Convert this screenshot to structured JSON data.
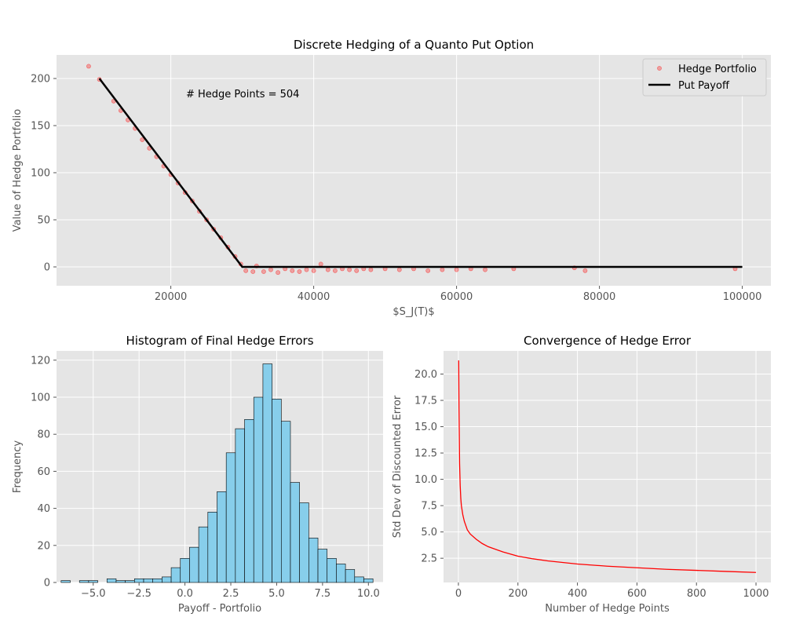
{
  "chart_data": [
    {
      "type": "scatter",
      "title": "Discrete Hedging of a Quanto Put Option",
      "xlabel": "$S_J(T)$",
      "ylabel": "Value of Hedge Portfolio",
      "xlim": [
        4000,
        104000
      ],
      "ylim": [
        -20,
        225
      ],
      "xticks": [
        20000,
        40000,
        60000,
        80000,
        100000
      ],
      "xtick_labels": [
        "20000",
        "40000",
        "60000",
        "80000",
        "100000"
      ],
      "yticks": [
        0,
        50,
        100,
        150,
        200
      ],
      "ytick_labels": [
        "0",
        "50",
        "100",
        "150",
        "200"
      ],
      "grid": true,
      "legend": "top-right",
      "annotation": "# Hedge Points = 504",
      "series": [
        {
          "name": "Hedge Portfolio",
          "kind": "scatter",
          "color": "#ff0000",
          "points": [
            [
              8500,
              213
            ],
            [
              10000,
              199
            ],
            [
              12000,
              176
            ],
            [
              13000,
              166
            ],
            [
              14000,
              156
            ],
            [
              15000,
              147
            ],
            [
              16000,
              135
            ],
            [
              17000,
              126
            ],
            [
              18000,
              117
            ],
            [
              19000,
              107
            ],
            [
              20000,
              98
            ],
            [
              21000,
              89
            ],
            [
              22000,
              79
            ],
            [
              23000,
              70
            ],
            [
              24000,
              59
            ],
            [
              25000,
              50
            ],
            [
              26000,
              40
            ],
            [
              27000,
              31
            ],
            [
              28000,
              21
            ],
            [
              29000,
              11
            ],
            [
              29800,
              3
            ],
            [
              30500,
              -4
            ],
            [
              31500,
              -5
            ],
            [
              32000,
              1
            ],
            [
              33000,
              -5
            ],
            [
              34000,
              -3
            ],
            [
              35000,
              -6
            ],
            [
              36000,
              -2
            ],
            [
              37000,
              -4
            ],
            [
              38000,
              -5
            ],
            [
              39000,
              -3
            ],
            [
              40000,
              -4
            ],
            [
              41000,
              3
            ],
            [
              42000,
              -3
            ],
            [
              43000,
              -4
            ],
            [
              44000,
              -2
            ],
            [
              45000,
              -3
            ],
            [
              46000,
              -4
            ],
            [
              47000,
              -2
            ],
            [
              48000,
              -3
            ],
            [
              50000,
              -2
            ],
            [
              52000,
              -3
            ],
            [
              54000,
              -2
            ],
            [
              56000,
              -4
            ],
            [
              58000,
              -3
            ],
            [
              60000,
              -3
            ],
            [
              62000,
              -2
            ],
            [
              64000,
              -3
            ],
            [
              68000,
              -2
            ],
            [
              76500,
              -1
            ],
            [
              78000,
              -4
            ],
            [
              99000,
              -2
            ]
          ]
        },
        {
          "name": "Put Payoff",
          "kind": "line",
          "color": "#000000",
          "points": [
            [
              10000,
              200
            ],
            [
              30000,
              0
            ],
            [
              100000,
              0
            ]
          ]
        }
      ]
    },
    {
      "type": "bar",
      "title": "Histogram of Final Hedge Errors",
      "xlabel": "Payoff - Portfolio",
      "ylabel": "Frequency",
      "xlim": [
        -7.0,
        10.8
      ],
      "ylim": [
        0,
        125
      ],
      "xticks": [
        -5,
        -2.5,
        0,
        2.5,
        5,
        7.5,
        10
      ],
      "xtick_labels": [
        "−5.0",
        "−2.5",
        "0.0",
        "2.5",
        "5.0",
        "7.5",
        "10.0"
      ],
      "yticks": [
        0,
        20,
        40,
        60,
        80,
        100,
        120
      ],
      "ytick_labels": [
        "0",
        "20",
        "40",
        "60",
        "80",
        "100",
        "120"
      ],
      "grid": true,
      "bin_width": 0.5,
      "fill_color": "#87ceeb",
      "bins": [
        [
          -6.5,
          1
        ],
        [
          -5.5,
          1
        ],
        [
          -5.0,
          1
        ],
        [
          -4.5,
          0
        ],
        [
          -4.0,
          2
        ],
        [
          -3.5,
          1
        ],
        [
          -3.0,
          1
        ],
        [
          -2.5,
          2
        ],
        [
          -2.0,
          2
        ],
        [
          -1.5,
          2
        ],
        [
          -1.0,
          3
        ],
        [
          -0.5,
          8
        ],
        [
          0.0,
          13
        ],
        [
          0.5,
          19
        ],
        [
          1.0,
          30
        ],
        [
          1.5,
          38
        ],
        [
          2.0,
          49
        ],
        [
          2.5,
          70
        ],
        [
          3.0,
          83
        ],
        [
          3.5,
          88
        ],
        [
          4.0,
          100
        ],
        [
          4.5,
          118
        ],
        [
          5.0,
          99
        ],
        [
          5.5,
          87
        ],
        [
          6.0,
          54
        ],
        [
          6.5,
          43
        ],
        [
          7.0,
          24
        ],
        [
          7.5,
          18
        ],
        [
          8.0,
          13
        ],
        [
          8.5,
          10
        ],
        [
          9.0,
          7
        ],
        [
          9.5,
          3
        ],
        [
          10.0,
          2
        ]
      ]
    },
    {
      "type": "line",
      "title": "Convergence of Hedge Error",
      "xlabel": "Number of Hedge Points",
      "ylabel": "Std Dev of Discounted Error",
      "xlim": [
        -50,
        1050
      ],
      "ylim": [
        0.2,
        22.2
      ],
      "xticks": [
        0,
        200,
        400,
        600,
        800,
        1000
      ],
      "xtick_labels": [
        "0",
        "200",
        "400",
        "600",
        "800",
        "1000"
      ],
      "yticks": [
        2.5,
        5.0,
        7.5,
        10.0,
        12.5,
        15.0,
        17.5,
        20.0
      ],
      "ytick_labels": [
        "2.5",
        "5.0",
        "7.5",
        "10.0",
        "12.5",
        "15.0",
        "17.5",
        "20.0"
      ],
      "grid": true,
      "series": [
        {
          "name": "",
          "color": "#ff0000",
          "x": [
            1,
            2,
            4,
            6,
            8,
            10,
            15,
            20,
            30,
            40,
            60,
            80,
            100,
            150,
            200,
            250,
            300,
            400,
            500,
            600,
            700,
            800,
            900,
            1000
          ],
          "y": [
            21.3,
            16.8,
            11.5,
            9.4,
            8.2,
            7.5,
            6.6,
            6.0,
            5.2,
            4.8,
            4.3,
            3.9,
            3.6,
            3.1,
            2.7,
            2.45,
            2.25,
            1.95,
            1.75,
            1.6,
            1.45,
            1.35,
            1.25,
            1.15
          ]
        }
      ]
    }
  ]
}
